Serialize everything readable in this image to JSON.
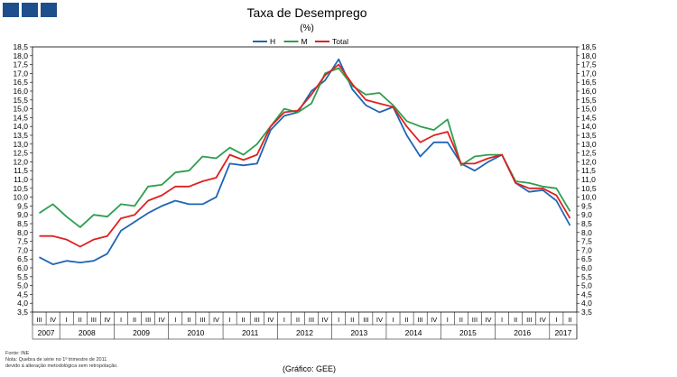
{
  "header": {
    "title": "Taxa de Desemprego",
    "subtitle": "(%)"
  },
  "logo_color": "#1f4e8c",
  "footnotes": {
    "source": "Fonte: INE",
    "note1": "Nota: Quebra de série no 1º trimestre de 2011",
    "note2": "devido à alteração metodológica sem retropolação.",
    "credit": "(Gráfico: GEE)"
  },
  "chart_data": {
    "type": "line",
    "title": "Taxa de Desemprego",
    "subtitle": "(%)",
    "ylim": [
      3.5,
      18.5
    ],
    "y_step": 0.5,
    "y_ticks": [
      "3,5",
      "4,0",
      "4,5",
      "5,0",
      "5,5",
      "6,0",
      "6,5",
      "7,0",
      "7,5",
      "8,0",
      "8,5",
      "9,0",
      "9,5",
      "10,0",
      "10,5",
      "11,0",
      "11,5",
      "12,0",
      "12,5",
      "13,0",
      "13,5",
      "14,0",
      "14,5",
      "15,0",
      "15,5",
      "16,0",
      "16,5",
      "17,0",
      "17,5",
      "18,0",
      "18,5"
    ],
    "axes": "left and right",
    "legend_position": "top-center",
    "categories": [
      "III",
      "IV",
      "I",
      "II",
      "III",
      "IV",
      "I",
      "II",
      "III",
      "IV",
      "I",
      "II",
      "III",
      "IV",
      "I",
      "II",
      "III",
      "IV",
      "I",
      "II",
      "III",
      "IV",
      "I",
      "II",
      "III",
      "IV",
      "I",
      "II",
      "III",
      "IV",
      "I",
      "II",
      "III",
      "IV",
      "I",
      "II",
      "III",
      "IV",
      "I",
      "II"
    ],
    "years": [
      {
        "label": "2007",
        "count": 2
      },
      {
        "label": "2008",
        "count": 4
      },
      {
        "label": "2009",
        "count": 4
      },
      {
        "label": "2010",
        "count": 4
      },
      {
        "label": "2011",
        "count": 4
      },
      {
        "label": "2012",
        "count": 4
      },
      {
        "label": "2013",
        "count": 4
      },
      {
        "label": "2014",
        "count": 4
      },
      {
        "label": "2015",
        "count": 4
      },
      {
        "label": "2016",
        "count": 4
      },
      {
        "label": "2017",
        "count": 2
      }
    ],
    "series": [
      {
        "name": "H",
        "color": "#1f66b5",
        "values": [
          6.6,
          6.2,
          6.4,
          6.3,
          6.4,
          6.8,
          8.1,
          8.6,
          9.1,
          9.5,
          9.8,
          9.6,
          9.6,
          10.0,
          11.9,
          11.8,
          11.9,
          13.8,
          14.6,
          14.8,
          16.0,
          16.6,
          17.8,
          16.1,
          15.2,
          14.8,
          15.1,
          13.5,
          12.3,
          13.1,
          13.1,
          11.9,
          11.5,
          12.0,
          12.4,
          10.8,
          10.3,
          10.4,
          9.8,
          8.4
        ]
      },
      {
        "name": "M",
        "color": "#2e9e4f",
        "values": [
          9.1,
          9.6,
          8.9,
          8.3,
          9.0,
          8.9,
          9.6,
          9.5,
          10.6,
          10.7,
          11.4,
          11.5,
          12.3,
          12.2,
          12.8,
          12.4,
          13.0,
          14.0,
          15.0,
          14.8,
          15.3,
          17.0,
          17.3,
          16.3,
          15.8,
          15.9,
          15.2,
          14.3,
          14.0,
          13.8,
          14.4,
          11.8,
          12.3,
          12.4,
          12.4,
          10.9,
          10.8,
          10.6,
          10.5,
          9.2
        ]
      },
      {
        "name": "Total",
        "color": "#e02020",
        "values": [
          7.8,
          7.8,
          7.6,
          7.2,
          7.6,
          7.8,
          8.8,
          9.0,
          9.8,
          10.1,
          10.6,
          10.6,
          10.9,
          11.1,
          12.4,
          12.1,
          12.4,
          14.0,
          14.8,
          14.9,
          15.8,
          16.9,
          17.5,
          16.4,
          15.5,
          15.3,
          15.1,
          14.0,
          13.1,
          13.5,
          13.7,
          11.9,
          11.9,
          12.2,
          12.4,
          10.8,
          10.5,
          10.5,
          10.1,
          8.8
        ]
      }
    ]
  }
}
